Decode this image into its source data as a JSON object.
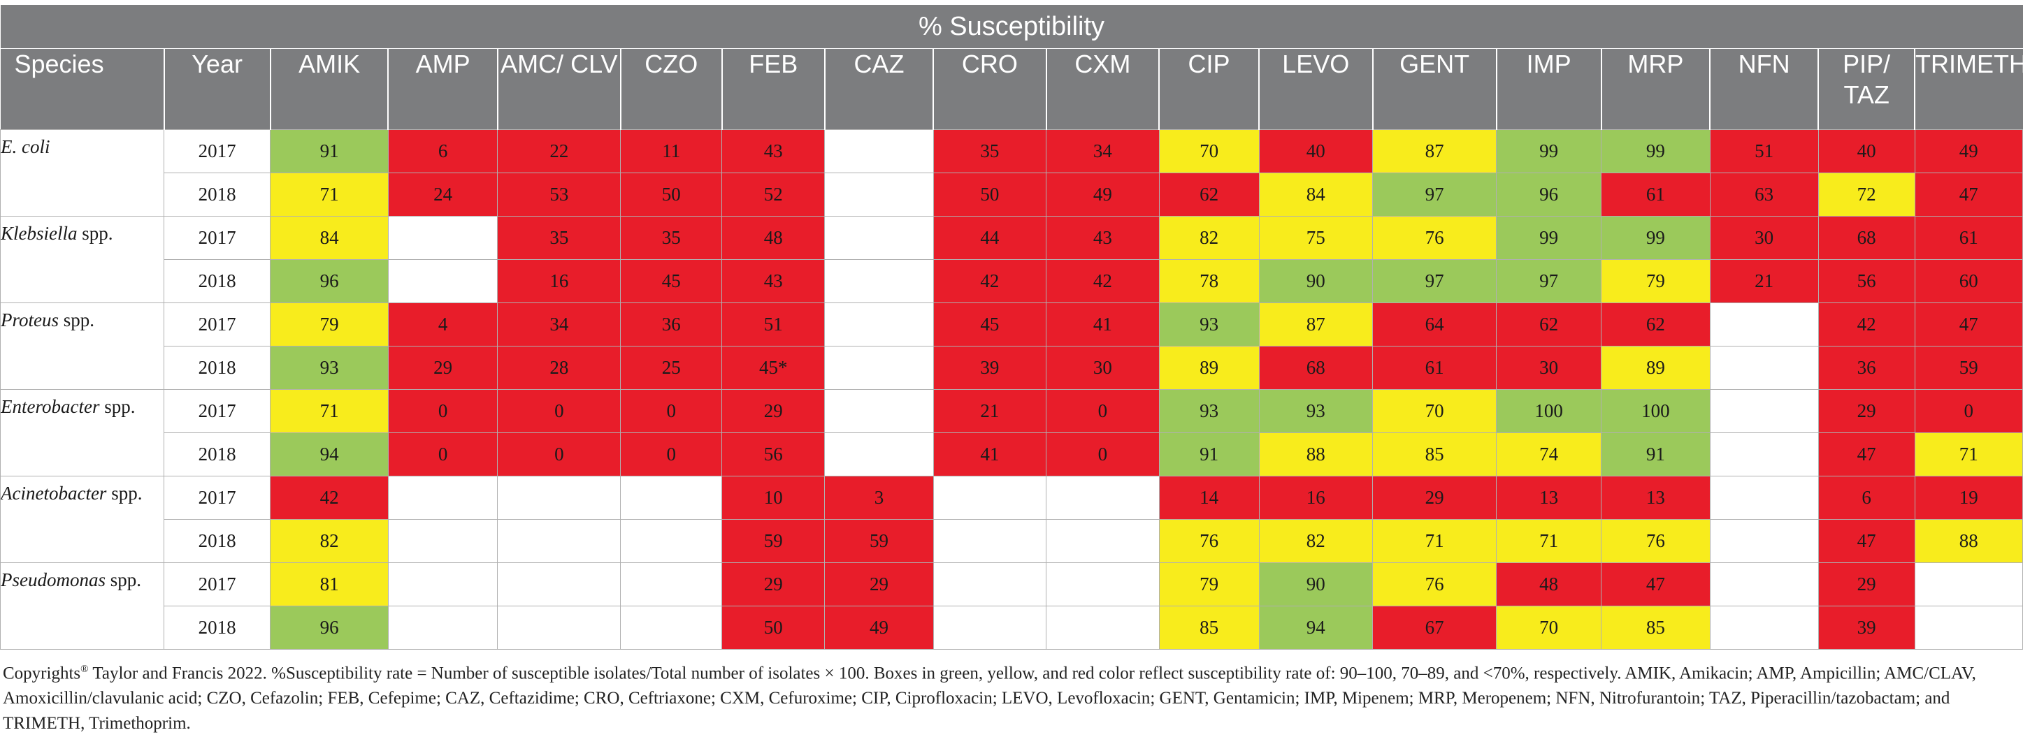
{
  "table": {
    "title": "% Susceptibility",
    "headers": {
      "species": "Species",
      "year": "Year",
      "drugs": [
        "AMIK",
        "AMP",
        "AMC/ CLV",
        "CZO",
        "FEB",
        "CAZ",
        "CRO",
        "CXM",
        "CIP",
        "LEVO",
        "GENT",
        "IMP",
        "MRP",
        "NFN",
        "PIP/ TAZ",
        "TRIMETH"
      ]
    },
    "species": [
      {
        "name_italic": "E. coli",
        "name_rest": "",
        "rows": [
          {
            "year": "2017",
            "cells": [
              [
                "91",
                "g"
              ],
              [
                "6",
                "r"
              ],
              [
                "22",
                "r"
              ],
              [
                "11",
                "r"
              ],
              [
                "43",
                "r"
              ],
              [
                "",
                "e"
              ],
              [
                "35",
                "r"
              ],
              [
                "34",
                "r"
              ],
              [
                "70",
                "y"
              ],
              [
                "40",
                "r"
              ],
              [
                "87",
                "y"
              ],
              [
                "99",
                "g"
              ],
              [
                "99",
                "g"
              ],
              [
                "51",
                "r"
              ],
              [
                "40",
                "r"
              ],
              [
                "49",
                "r"
              ]
            ]
          },
          {
            "year": "2018",
            "cells": [
              [
                "71",
                "y"
              ],
              [
                "24",
                "r"
              ],
              [
                "53",
                "r"
              ],
              [
                "50",
                "r"
              ],
              [
                "52",
                "r"
              ],
              [
                "",
                "e"
              ],
              [
                "50",
                "r"
              ],
              [
                "49",
                "r"
              ],
              [
                "62",
                "r"
              ],
              [
                "84",
                "y"
              ],
              [
                "97",
                "g"
              ],
              [
                "96",
                "g"
              ],
              [
                "61",
                "r"
              ],
              [
                "63",
                "r"
              ],
              [
                "72",
                "y"
              ],
              [
                "47",
                "r"
              ]
            ]
          }
        ]
      },
      {
        "name_italic": "Klebsiella",
        "name_rest": " spp.",
        "rows": [
          {
            "year": "2017",
            "cells": [
              [
                "84",
                "y"
              ],
              [
                "",
                "e"
              ],
              [
                "35",
                "r"
              ],
              [
                "35",
                "r"
              ],
              [
                "48",
                "r"
              ],
              [
                "",
                "e"
              ],
              [
                "44",
                "r"
              ],
              [
                "43",
                "r"
              ],
              [
                "82",
                "y"
              ],
              [
                "75",
                "y"
              ],
              [
                "76",
                "y"
              ],
              [
                "99",
                "g"
              ],
              [
                "99",
                "g"
              ],
              [
                "30",
                "r"
              ],
              [
                "68",
                "r"
              ],
              [
                "61",
                "r"
              ]
            ]
          },
          {
            "year": "2018",
            "cells": [
              [
                "96",
                "g"
              ],
              [
                "",
                "e"
              ],
              [
                "16",
                "r"
              ],
              [
                "45",
                "r"
              ],
              [
                "43",
                "r"
              ],
              [
                "",
                "e"
              ],
              [
                "42",
                "r"
              ],
              [
                "42",
                "r"
              ],
              [
                "78",
                "y"
              ],
              [
                "90",
                "g"
              ],
              [
                "97",
                "g"
              ],
              [
                "97",
                "g"
              ],
              [
                "79",
                "y"
              ],
              [
                "21",
                "r"
              ],
              [
                "56",
                "r"
              ],
              [
                "60",
                "r"
              ]
            ]
          }
        ]
      },
      {
        "name_italic": "Proteus",
        "name_rest": " spp.",
        "rows": [
          {
            "year": "2017",
            "cells": [
              [
                "79",
                "y"
              ],
              [
                "4",
                "r"
              ],
              [
                "34",
                "r"
              ],
              [
                "36",
                "r"
              ],
              [
                "51",
                "r"
              ],
              [
                "",
                "e"
              ],
              [
                "45",
                "r"
              ],
              [
                "41",
                "r"
              ],
              [
                "93",
                "g"
              ],
              [
                "87",
                "y"
              ],
              [
                "64",
                "r"
              ],
              [
                "62",
                "r"
              ],
              [
                "62",
                "r"
              ],
              [
                "",
                "e"
              ],
              [
                "42",
                "r"
              ],
              [
                "47",
                "r"
              ]
            ]
          },
          {
            "year": "2018",
            "cells": [
              [
                "93",
                "g"
              ],
              [
                "29",
                "r"
              ],
              [
                "28",
                "r"
              ],
              [
                "25",
                "r"
              ],
              [
                "45*",
                "r"
              ],
              [
                "",
                "e"
              ],
              [
                "39",
                "r"
              ],
              [
                "30",
                "r"
              ],
              [
                "89",
                "y"
              ],
              [
                "68",
                "r"
              ],
              [
                "61",
                "r"
              ],
              [
                "30",
                "r"
              ],
              [
                "89",
                "y"
              ],
              [
                "",
                "e"
              ],
              [
                "36",
                "r"
              ],
              [
                "59",
                "r"
              ]
            ]
          }
        ]
      },
      {
        "name_italic": "Enterobacter",
        "name_rest": " spp.",
        "rows": [
          {
            "year": "2017",
            "cells": [
              [
                "71",
                "y"
              ],
              [
                "0",
                "r"
              ],
              [
                "0",
                "r"
              ],
              [
                "0",
                "r"
              ],
              [
                "29",
                "r"
              ],
              [
                "",
                "e"
              ],
              [
                "21",
                "r"
              ],
              [
                "0",
                "r"
              ],
              [
                "93",
                "g"
              ],
              [
                "93",
                "g"
              ],
              [
                "70",
                "y"
              ],
              [
                "100",
                "g"
              ],
              [
                "100",
                "g"
              ],
              [
                "",
                "e"
              ],
              [
                "29",
                "r"
              ],
              [
                "0",
                "r"
              ]
            ]
          },
          {
            "year": "2018",
            "cells": [
              [
                "94",
                "g"
              ],
              [
                "0",
                "r"
              ],
              [
                "0",
                "r"
              ],
              [
                "0",
                "r"
              ],
              [
                "56",
                "r"
              ],
              [
                "",
                "e"
              ],
              [
                "41",
                "r"
              ],
              [
                "0",
                "r"
              ],
              [
                "91",
                "g"
              ],
              [
                "88",
                "y"
              ],
              [
                "85",
                "y"
              ],
              [
                "74",
                "y"
              ],
              [
                "91",
                "g"
              ],
              [
                "",
                "e"
              ],
              [
                "47",
                "r"
              ],
              [
                "71",
                "y"
              ]
            ]
          }
        ]
      },
      {
        "name_italic": "Acinetobacter",
        "name_rest": " spp.",
        "rows": [
          {
            "year": "2017",
            "cells": [
              [
                "42",
                "r"
              ],
              [
                "",
                "e"
              ],
              [
                "",
                "e"
              ],
              [
                "",
                "e"
              ],
              [
                "10",
                "r"
              ],
              [
                "3",
                "r"
              ],
              [
                "",
                "e"
              ],
              [
                "",
                "e"
              ],
              [
                "14",
                "r"
              ],
              [
                "16",
                "r"
              ],
              [
                "29",
                "r"
              ],
              [
                "13",
                "r"
              ],
              [
                "13",
                "r"
              ],
              [
                "",
                "e"
              ],
              [
                "6",
                "r"
              ],
              [
                "19",
                "r"
              ]
            ]
          },
          {
            "year": "2018",
            "cells": [
              [
                "82",
                "y"
              ],
              [
                "",
                "e"
              ],
              [
                "",
                "e"
              ],
              [
                "",
                "e"
              ],
              [
                "59",
                "r"
              ],
              [
                "59",
                "r"
              ],
              [
                "",
                "e"
              ],
              [
                "",
                "e"
              ],
              [
                "76",
                "y"
              ],
              [
                "82",
                "y"
              ],
              [
                "71",
                "y"
              ],
              [
                "71",
                "y"
              ],
              [
                "76",
                "y"
              ],
              [
                "",
                "e"
              ],
              [
                "47",
                "r"
              ],
              [
                "88",
                "y"
              ]
            ]
          }
        ]
      },
      {
        "name_italic": "Pseudomonas",
        "name_rest": " spp.",
        "rows": [
          {
            "year": "2017",
            "cells": [
              [
                "81",
                "y"
              ],
              [
                "",
                "e"
              ],
              [
                "",
                "e"
              ],
              [
                "",
                "e"
              ],
              [
                "29",
                "r"
              ],
              [
                "29",
                "r"
              ],
              [
                "",
                "e"
              ],
              [
                "",
                "e"
              ],
              [
                "79",
                "y"
              ],
              [
                "90",
                "g"
              ],
              [
                "76",
                "y"
              ],
              [
                "48",
                "r"
              ],
              [
                "47",
                "r"
              ],
              [
                "",
                "e"
              ],
              [
                "29",
                "r"
              ],
              [
                "",
                "e"
              ]
            ]
          },
          {
            "year": "2018",
            "cells": [
              [
                "96",
                "g"
              ],
              [
                "",
                "e"
              ],
              [
                "",
                "e"
              ],
              [
                "",
                "e"
              ],
              [
                "50",
                "r"
              ],
              [
                "49",
                "r"
              ],
              [
                "",
                "e"
              ],
              [
                "",
                "e"
              ],
              [
                "85",
                "y"
              ],
              [
                "94",
                "g"
              ],
              [
                "67",
                "r"
              ],
              [
                "70",
                "y"
              ],
              [
                "85",
                "y"
              ],
              [
                "",
                "e"
              ],
              [
                "39",
                "r"
              ],
              [
                "",
                "e"
              ]
            ]
          }
        ]
      }
    ]
  },
  "footnote": {
    "sup_mark": "®",
    "text_before_sup": "Copyrights",
    "text_after_sup": " Taylor and Francis 2022. %Susceptibility rate = Number of susceptible isolates/Total number of isolates × 100. Boxes in green, yellow, and red color reflect susceptibility rate of: 90–100, 70–89, and <70%, respectively. AMIK, Amikacin; AMP, Ampicillin; AMC/CLAV, Amoxicillin/clavulanic acid; CZO, Cefazolin; FEB, Cefepime; CAZ, Ceftazidime; CRO, Ceftriaxone; CXM, Cefuroxime; CIP, Ciprofloxacin; LEVO, Levofloxacin; GENT, Gentamicin; IMP, Mipenem; MRP, Meropenem; NFN, Nitrofurantoin; TAZ, Piperacillin/tazobactam; and TRIMETH, Trimethoprim."
  },
  "colors": {
    "green": "#9bc95b",
    "yellow": "#f8ec1c",
    "red": "#e81d2a",
    "header": "#7c7d7f"
  }
}
